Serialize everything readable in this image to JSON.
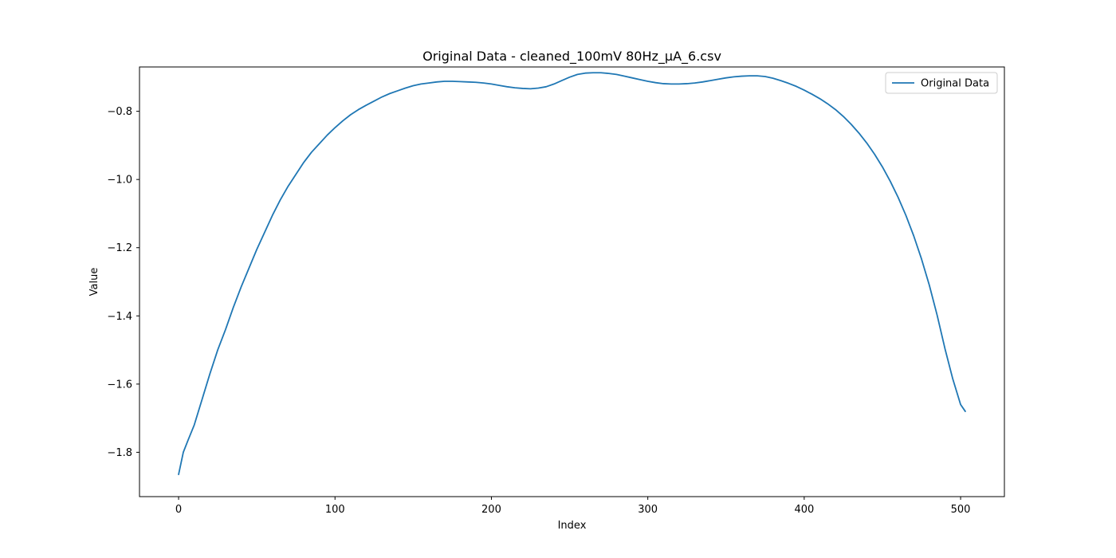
{
  "chart_data": {
    "type": "line",
    "title": "Original Data - cleaned_100mV 80Hz_µA_6.csv",
    "xlabel": "Index",
    "ylabel": "Value",
    "xlim": [
      -25,
      528
    ],
    "ylim": [
      -1.93,
      -0.67
    ],
    "xticks": [
      0,
      100,
      200,
      300,
      400,
      500
    ],
    "yticks": [
      -1.8,
      -1.6,
      -1.4,
      -1.2,
      -1.0,
      -0.8
    ],
    "ytick_labels": [
      "−1.8",
      "−1.6",
      "−1.4",
      "−1.2",
      "−1.0",
      "−0.8"
    ],
    "grid": false,
    "legend_position": "top-right",
    "series": [
      {
        "name": "Original Data",
        "color": "#1f77b4",
        "x": [
          0,
          3,
          6,
          10,
          15,
          20,
          25,
          30,
          35,
          40,
          45,
          50,
          55,
          60,
          65,
          70,
          75,
          80,
          85,
          90,
          95,
          100,
          105,
          110,
          115,
          120,
          125,
          130,
          135,
          140,
          145,
          150,
          155,
          160,
          165,
          170,
          175,
          180,
          185,
          190,
          195,
          200,
          205,
          210,
          215,
          220,
          225,
          230,
          235,
          240,
          245,
          250,
          255,
          260,
          265,
          270,
          275,
          280,
          285,
          290,
          295,
          300,
          305,
          310,
          315,
          320,
          325,
          330,
          335,
          340,
          345,
          350,
          355,
          360,
          365,
          370,
          375,
          380,
          385,
          390,
          395,
          400,
          405,
          410,
          415,
          420,
          425,
          430,
          435,
          440,
          445,
          450,
          455,
          460,
          465,
          470,
          475,
          480,
          485,
          490,
          495,
          500,
          503
        ],
        "y": [
          -1.865,
          -1.8,
          -1.765,
          -1.72,
          -1.645,
          -1.57,
          -1.5,
          -1.44,
          -1.375,
          -1.315,
          -1.26,
          -1.205,
          -1.155,
          -1.105,
          -1.06,
          -1.02,
          -0.985,
          -0.95,
          -0.92,
          -0.895,
          -0.87,
          -0.848,
          -0.828,
          -0.81,
          -0.795,
          -0.782,
          -0.77,
          -0.758,
          -0.748,
          -0.74,
          -0.732,
          -0.725,
          -0.72,
          -0.717,
          -0.714,
          -0.712,
          -0.712,
          -0.713,
          -0.714,
          -0.715,
          -0.717,
          -0.72,
          -0.724,
          -0.728,
          -0.731,
          -0.733,
          -0.734,
          -0.732,
          -0.728,
          -0.72,
          -0.71,
          -0.7,
          -0.692,
          -0.688,
          -0.687,
          -0.687,
          -0.689,
          -0.692,
          -0.697,
          -0.702,
          -0.707,
          -0.712,
          -0.716,
          -0.719,
          -0.72,
          -0.72,
          -0.719,
          -0.717,
          -0.714,
          -0.71,
          -0.706,
          -0.702,
          -0.699,
          -0.697,
          -0.696,
          -0.696,
          -0.698,
          -0.703,
          -0.71,
          -0.718,
          -0.727,
          -0.738,
          -0.75,
          -0.763,
          -0.778,
          -0.795,
          -0.815,
          -0.838,
          -0.864,
          -0.893,
          -0.926,
          -0.963,
          -1.005,
          -1.052,
          -1.105,
          -1.165,
          -1.233,
          -1.31,
          -1.398,
          -1.496,
          -1.585,
          -1.66,
          -1.68
        ]
      }
    ]
  }
}
